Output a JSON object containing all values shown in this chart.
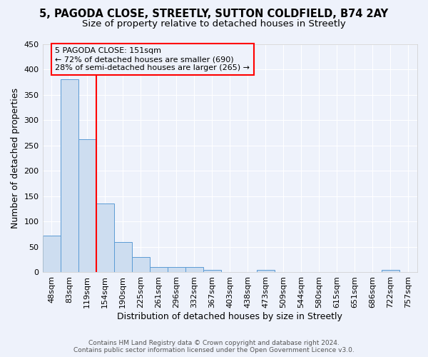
{
  "title1": "5, PAGODA CLOSE, STREETLY, SUTTON COLDFIELD, B74 2AY",
  "title2": "Size of property relative to detached houses in Streetly",
  "xlabel": "Distribution of detached houses by size in Streetly",
  "ylabel": "Number of detached properties",
  "bar_labels": [
    "48sqm",
    "83sqm",
    "119sqm",
    "154sqm",
    "190sqm",
    "225sqm",
    "261sqm",
    "296sqm",
    "332sqm",
    "367sqm",
    "403sqm",
    "438sqm",
    "473sqm",
    "509sqm",
    "544sqm",
    "580sqm",
    "615sqm",
    "651sqm",
    "686sqm",
    "722sqm",
    "757sqm"
  ],
  "bar_values": [
    72,
    380,
    262,
    136,
    60,
    30,
    10,
    10,
    10,
    5,
    0,
    0,
    5,
    0,
    0,
    0,
    0,
    0,
    0,
    5,
    0
  ],
  "bar_color": "#cdddf0",
  "bar_edge_color": "#5b9bd5",
  "ylim": [
    0,
    450
  ],
  "yticks": [
    0,
    50,
    100,
    150,
    200,
    250,
    300,
    350,
    400,
    450
  ],
  "marker_label": "5 PAGODA CLOSE: 151sqm",
  "annotation_line1": "← 72% of detached houses are smaller (690)",
  "annotation_line2": "28% of semi-detached houses are larger (265) →",
  "red_line_bar_index": 3,
  "footer1": "Contains HM Land Registry data © Crown copyright and database right 2024.",
  "footer2": "Contains public sector information licensed under the Open Government Licence v3.0.",
  "background_color": "#eef2fb",
  "grid_color": "#ffffff",
  "title_fontsize": 10.5,
  "subtitle_fontsize": 9.5,
  "axis_label_fontsize": 9,
  "tick_fontsize": 8,
  "footer_fontsize": 6.5
}
